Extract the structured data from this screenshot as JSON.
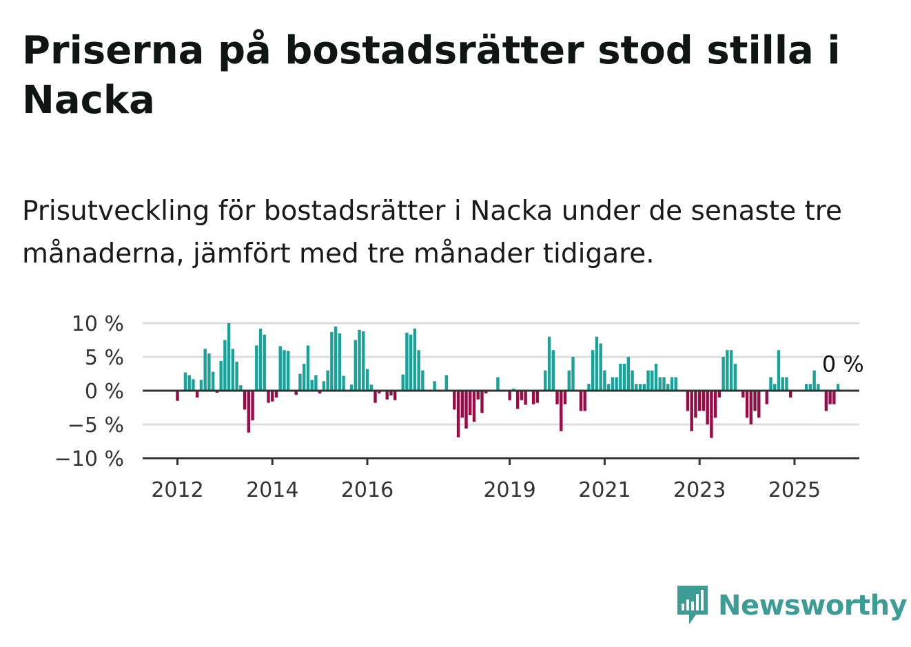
{
  "title": "Priserna på bostadsrätter stod stilla i Nacka",
  "subtitle": "Prisutveckling för bostadsrätter i Nacka under de senaste tre månaderna, jämfört med tre månader tidigare.",
  "logo": {
    "text": "Newsworthy",
    "icon": "bar-chart-speech-bubble-icon"
  },
  "colors": {
    "positive": "#16a39a",
    "negative": "#9a0a45",
    "grid": "#dddddd",
    "axis": "#333333",
    "logo": "#3d9c94"
  },
  "chart_data": {
    "type": "bar",
    "title": "",
    "xlabel": "",
    "ylabel": "",
    "y_unit": "%",
    "ylim": [
      -10,
      10
    ],
    "y_ticks": [
      10,
      5,
      0,
      -5,
      -10
    ],
    "y_tick_labels": [
      "10 %",
      "5 %",
      "0 %",
      "−5 %",
      "−10 %"
    ],
    "x_tick_years": [
      2012,
      2014,
      2016,
      2019,
      2021,
      2023,
      2025
    ],
    "x_tick_labels": [
      "2012",
      "2014",
      "2016",
      "2019",
      "2021",
      "2023",
      "2025"
    ],
    "grid": true,
    "start": "2012-01",
    "series": [
      {
        "values": [
          -1.5,
          0,
          2.7,
          2.3,
          1.7,
          -1.0,
          1.6,
          6.2,
          5.5,
          2.8,
          -0.3,
          4.4,
          7.5,
          10.0,
          6.2,
          4.3,
          0.8,
          -2.8,
          -6.2,
          -4.4,
          6.7,
          9.2,
          8.3,
          -1.8,
          -1.6,
          -1.0,
          6.6,
          6.0,
          5.9,
          0,
          -0.6,
          2.5,
          4.0,
          6.7,
          1.6,
          2.3,
          -0.4,
          1.4,
          3.0,
          8.7,
          9.5,
          8.5,
          2.2,
          0,
          0.9,
          7.5,
          9.0,
          8.8,
          3.2,
          0.9,
          -1.8,
          -0.4,
          0,
          -1.3,
          -0.7,
          -1.4,
          0,
          2.4,
          8.6,
          8.3,
          9.2,
          6.0,
          3.0,
          0,
          0,
          1.4,
          0,
          0,
          2.3,
          0,
          -2.8,
          -6.9,
          -4.0,
          -5.6,
          -3.6,
          -4.6,
          -1.3,
          -3.3,
          -0.4,
          0,
          0,
          2.0,
          0,
          0,
          -1.4,
          0.3,
          -2.7,
          -1.4,
          -2.1,
          0,
          -2.0,
          -1.8,
          0,
          3.0,
          8.0,
          6.0,
          -2.0,
          -6.0,
          -2.0,
          3.0,
          5.0,
          0,
          -3.0,
          -3.0,
          1.0,
          6.0,
          8.0,
          7.0,
          3.0,
          1.0,
          2.0,
          2.0,
          4.0,
          4.0,
          5.0,
          3.0,
          1.0,
          1.0,
          1.0,
          3.0,
          3.0,
          4.0,
          2.0,
          2.0,
          1.0,
          2.0,
          2.0,
          0,
          0,
          -3.0,
          -6.0,
          -4.0,
          -3.0,
          -3.0,
          -5.0,
          -7.0,
          -4.0,
          -1.0,
          5.0,
          6.0,
          6.0,
          4.0,
          0,
          -1.0,
          -4.0,
          -5.0,
          -3.0,
          -4.0,
          0,
          -2.0,
          2.0,
          1.0,
          6.0,
          2.0,
          2.0,
          -1.0,
          0,
          0,
          0,
          1.0,
          1.0,
          3.0,
          1.0,
          0,
          -3.0,
          -2.0,
          -2.0,
          1.0,
          0
        ]
      }
    ],
    "end_label": "0 %"
  }
}
